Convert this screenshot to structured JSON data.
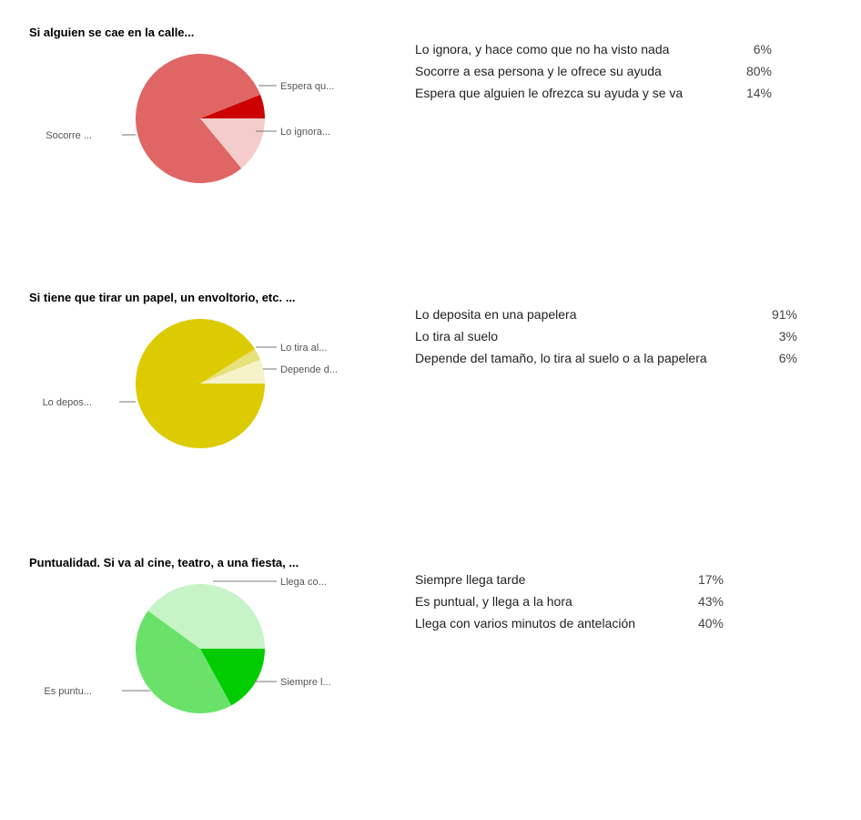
{
  "chart_data": [
    {
      "type": "pie",
      "title": "Si alguien se cae en la calle...",
      "colors": [
        "#cc0000",
        "#e06666",
        "#f4cccc"
      ],
      "slices": [
        {
          "label": "Lo ignora, y hace como que no ha visto nada",
          "short": "Lo ignora...",
          "value": 6,
          "display": "6%"
        },
        {
          "label": "Socorre a esa persona y le ofrece su ayuda",
          "short": "Socorre ...",
          "value": 80,
          "display": "80%"
        },
        {
          "label": "Espera que alguien le ofrezca su ayuda y se va",
          "short": "Espera qu...",
          "value": 14,
          "display": "14%"
        }
      ]
    },
    {
      "type": "pie",
      "title": "Si tiene que tirar un papel, un envoltorio, etc. ...",
      "colors": [
        "#dccb00",
        "#e8e07a",
        "#f7f3c8"
      ],
      "slices": [
        {
          "label": "Lo deposita en una papelera",
          "short": "Lo depos...",
          "value": 91,
          "display": "91%"
        },
        {
          "label": "Lo tira al suelo",
          "short": "Lo tira al...",
          "value": 3,
          "display": "3%"
        },
        {
          "label": "Depende del tamaño, lo tira al suelo o a la papelera",
          "short": "Depende d...",
          "value": 6,
          "display": "6%"
        }
      ]
    },
    {
      "type": "pie",
      "title": "Puntualidad. Si va al cine, teatro, a una fiesta, ...",
      "colors": [
        "#00cc00",
        "#6ae26a",
        "#c6f4c6"
      ],
      "slices": [
        {
          "label": "Siempre llega tarde",
          "short": "Siempre l...",
          "value": 17,
          "display": "17%"
        },
        {
          "label": "Es puntual, y llega a la hora",
          "short": "Es puntu...",
          "value": 43,
          "display": "43%"
        },
        {
          "label": "Llega con varios minutos de antelación",
          "short": "Llega co...",
          "value": 40,
          "display": "40%"
        }
      ]
    }
  ]
}
